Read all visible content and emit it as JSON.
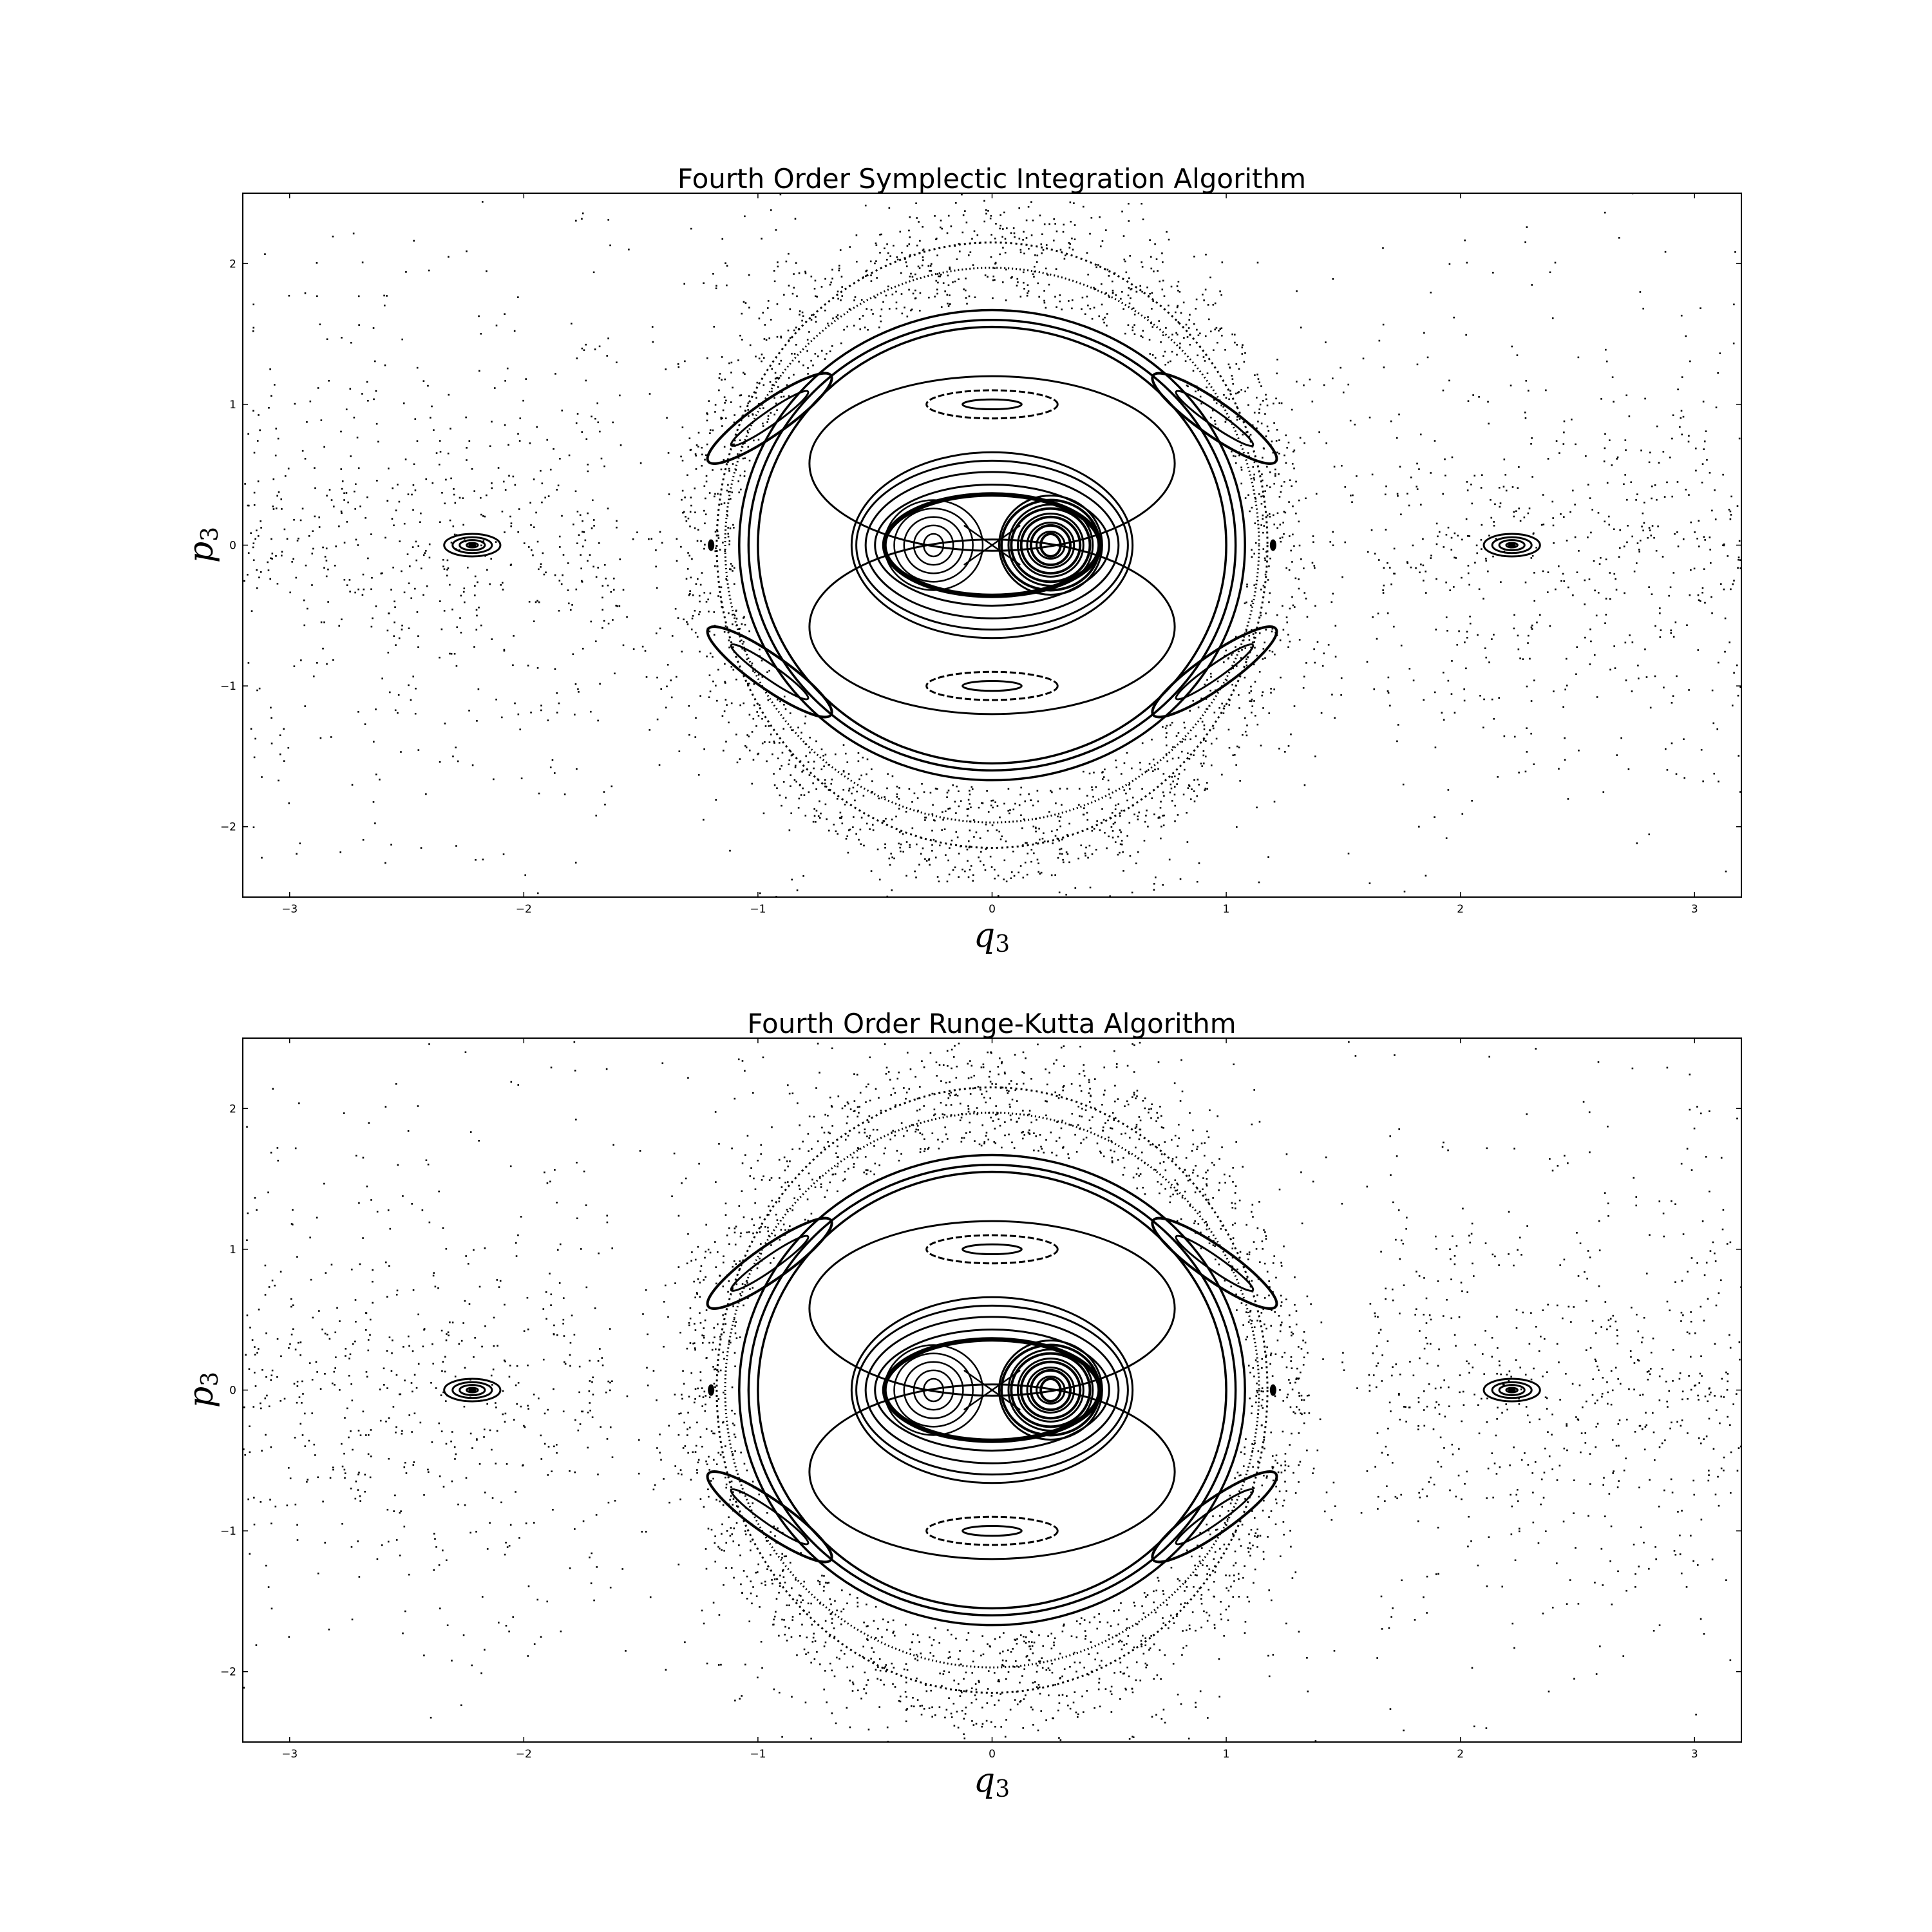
{
  "chart_data": [
    {
      "type": "scatter",
      "title": "Fourth Order Symplectic Integration Algorithm",
      "xlabel": "q",
      "xlabel_sub": "3",
      "ylabel": "p",
      "ylabel_sub": "3",
      "xlim": [
        -3.2,
        3.2
      ],
      "ylim": [
        -2.5,
        2.5
      ],
      "grid": false,
      "xticks": [
        "−3",
        "−2",
        "−1",
        "0",
        "1",
        "2",
        "3"
      ],
      "xtick_values": [
        -3,
        -2,
        -1,
        0,
        1,
        2,
        3
      ],
      "yticks": [
        "−2",
        "−1",
        "0",
        "1",
        "2"
      ],
      "ytick_values": [
        -2,
        -1,
        0,
        1,
        2
      ],
      "marker_color": "#000000",
      "structures": {
        "island_centers_x": [
          -0.25,
          0.25
        ],
        "island_radii_x": [
          0.04,
          0.08,
          0.12,
          0.16,
          0.2
        ],
        "island_radii_y": [
          0.08,
          0.14,
          0.2,
          0.26,
          0.32
        ],
        "separatrix_x": 0,
        "outer_ovals": [
          {
            "a": 0.5,
            "b": 0.43
          },
          {
            "a": 0.54,
            "b": 0.52
          },
          {
            "a": 0.58,
            "b": 0.6
          },
          {
            "a": 0.6,
            "b": 0.66
          }
        ],
        "large_rings": [
          {
            "a": 1.0,
            "b": 1.55
          },
          {
            "a": 1.04,
            "b": 1.6
          },
          {
            "a": 1.08,
            "b": 1.67
          }
        ],
        "top_bottom_islands": [
          {
            "cx": 0,
            "cy": 1.0,
            "a": 0.28,
            "b": 0.1
          },
          {
            "cx": 0,
            "cy": -1.0,
            "a": 0.28,
            "b": 0.1
          }
        ],
        "side_islands": [
          {
            "cx": -2.22,
            "cy": 0,
            "a": 0.12,
            "b": 0.08
          },
          {
            "cx": 2.22,
            "cy": 0,
            "a": 0.12,
            "b": 0.08
          }
        ],
        "outer_band": {
          "a": 1.2,
          "b": 2.15
        }
      }
    },
    {
      "type": "scatter",
      "title": "Fourth Order Runge-Kutta Algorithm",
      "xlabel": "q",
      "xlabel_sub": "3",
      "ylabel": "p",
      "ylabel_sub": "3",
      "xlim": [
        -3.2,
        3.2
      ],
      "ylim": [
        -2.5,
        2.5
      ],
      "grid": false,
      "xticks": [
        "−3",
        "−2",
        "−1",
        "0",
        "1",
        "2",
        "3"
      ],
      "xtick_values": [
        -3,
        -2,
        -1,
        0,
        1,
        2,
        3
      ],
      "yticks": [
        "−2",
        "−1",
        "0",
        "1",
        "2"
      ],
      "ytick_values": [
        -2,
        -1,
        0,
        1,
        2
      ],
      "marker_color": "#000000",
      "structures": {
        "island_centers_x": [
          -0.25,
          0.25
        ],
        "island_radii_x": [
          0.04,
          0.08,
          0.12,
          0.16,
          0.2
        ],
        "island_radii_y": [
          0.08,
          0.14,
          0.2,
          0.26,
          0.32
        ],
        "separatrix_x": 0,
        "outer_ovals": [
          {
            "a": 0.5,
            "b": 0.43
          },
          {
            "a": 0.54,
            "b": 0.52
          },
          {
            "a": 0.58,
            "b": 0.6
          },
          {
            "a": 0.6,
            "b": 0.66
          }
        ],
        "large_rings": [
          {
            "a": 1.0,
            "b": 1.55
          },
          {
            "a": 1.04,
            "b": 1.6
          },
          {
            "a": 1.08,
            "b": 1.67
          }
        ],
        "top_bottom_islands": [
          {
            "cx": 0,
            "cy": 1.0,
            "a": 0.28,
            "b": 0.1
          },
          {
            "cx": 0,
            "cy": -1.0,
            "a": 0.28,
            "b": 0.1
          }
        ],
        "side_islands": [
          {
            "cx": -2.22,
            "cy": 0,
            "a": 0.12,
            "b": 0.08
          },
          {
            "cx": 2.22,
            "cy": 0,
            "a": 0.12,
            "b": 0.08
          }
        ],
        "outer_band": {
          "a": 1.2,
          "b": 2.15
        }
      }
    }
  ]
}
